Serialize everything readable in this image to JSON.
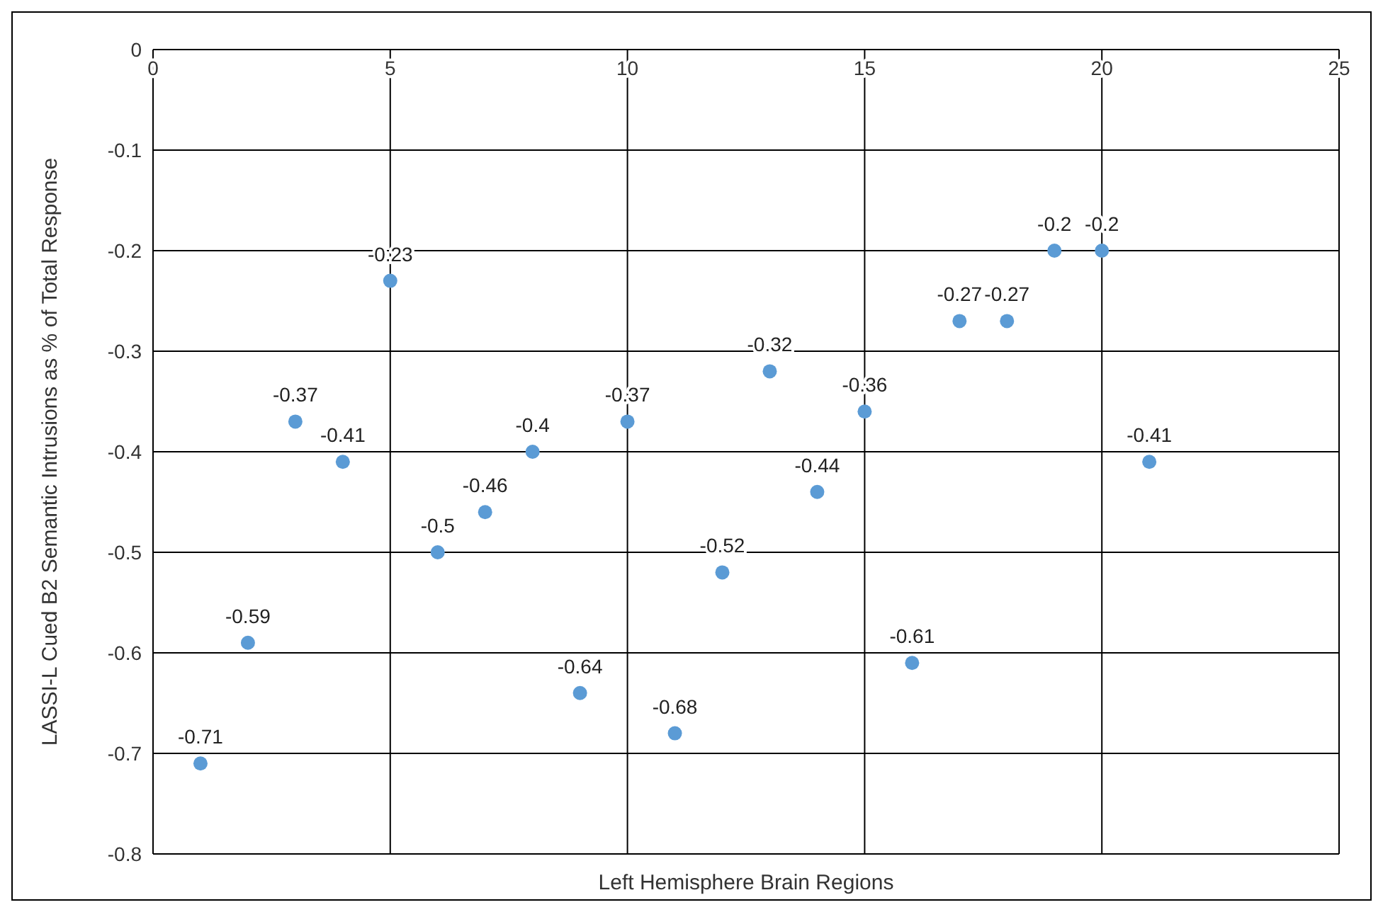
{
  "chart_data": {
    "type": "scatter",
    "xlabel": "Left Hemisphere Brain Regions",
    "ylabel": "LASSI-L Cued B2 Semantic Intrusions as % of Total Response",
    "x": [
      1,
      2,
      3,
      4,
      5,
      6,
      7,
      8,
      9,
      10,
      11,
      12,
      13,
      14,
      15,
      16,
      17,
      18,
      19,
      20,
      21
    ],
    "series": [
      {
        "color": "#5b9bd5",
        "values": [
          -0.71,
          -0.59,
          -0.37,
          -0.41,
          -0.23,
          -0.5,
          -0.46,
          -0.4,
          -0.64,
          -0.37,
          -0.68,
          -0.52,
          -0.32,
          -0.44,
          -0.36,
          -0.61,
          -0.27,
          -0.27,
          -0.2,
          -0.2,
          -0.41
        ]
      }
    ],
    "xlim": [
      0,
      25
    ],
    "xticks": [
      0,
      5,
      10,
      15,
      20,
      25
    ],
    "ylim": [
      -0.8,
      0
    ],
    "yticks": [
      0,
      -0.1,
      -0.2,
      -0.3,
      -0.4,
      -0.5,
      -0.6,
      -0.7,
      -0.8
    ],
    "grid": true,
    "marker": "circle",
    "data_labels": true
  }
}
